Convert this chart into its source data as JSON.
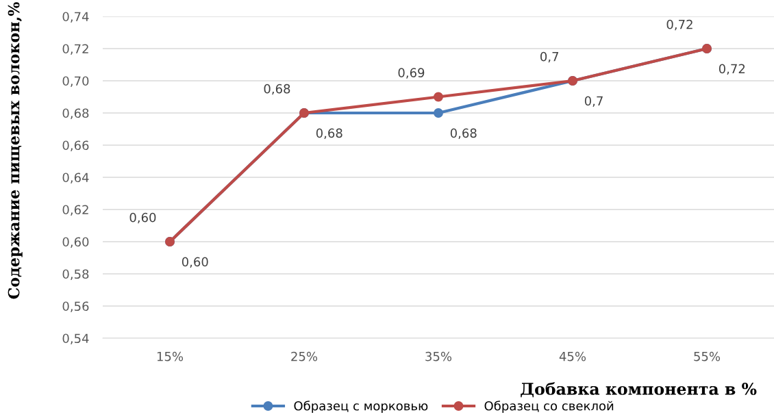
{
  "chart_data": {
    "type": "line",
    "xlabel": "Добавка компонента в %",
    "ylabel": "Содержание пищевых волокон,%",
    "categories": [
      "15%",
      "25%",
      "35%",
      "45%",
      "55%"
    ],
    "series": [
      {
        "name": "Образец с морковью",
        "color": "#4a7ebb",
        "values": [
          0.6,
          0.68,
          0.68,
          0.7,
          0.72
        ],
        "value_labels": [
          "0,60",
          "0,68",
          "0,68",
          "0,7",
          "0,72"
        ]
      },
      {
        "name": "Образец со свеклой",
        "color": "#be4b48",
        "values": [
          0.6,
          0.68,
          0.69,
          0.7,
          0.72
        ],
        "value_labels": [
          "0,60",
          "0,68",
          "0,69",
          "0,7",
          "0,72"
        ]
      }
    ],
    "ylim": [
      0.54,
      0.74
    ],
    "yticks": [
      {
        "value": 0.54,
        "label": "0,54"
      },
      {
        "value": 0.56,
        "label": "0,56"
      },
      {
        "value": 0.58,
        "label": "0,58"
      },
      {
        "value": 0.6,
        "label": "0,60"
      },
      {
        "value": 0.62,
        "label": "0,62"
      },
      {
        "value": 0.64,
        "label": "0,64"
      },
      {
        "value": 0.66,
        "label": "0,66"
      },
      {
        "value": 0.68,
        "label": "0,68"
      },
      {
        "value": 0.7,
        "label": "0,70"
      },
      {
        "value": 0.72,
        "label": "0,72"
      },
      {
        "value": 0.74,
        "label": "0,74"
      }
    ],
    "grid": "y",
    "legend": "bottom",
    "marker": "circle",
    "line_style": "solid"
  }
}
